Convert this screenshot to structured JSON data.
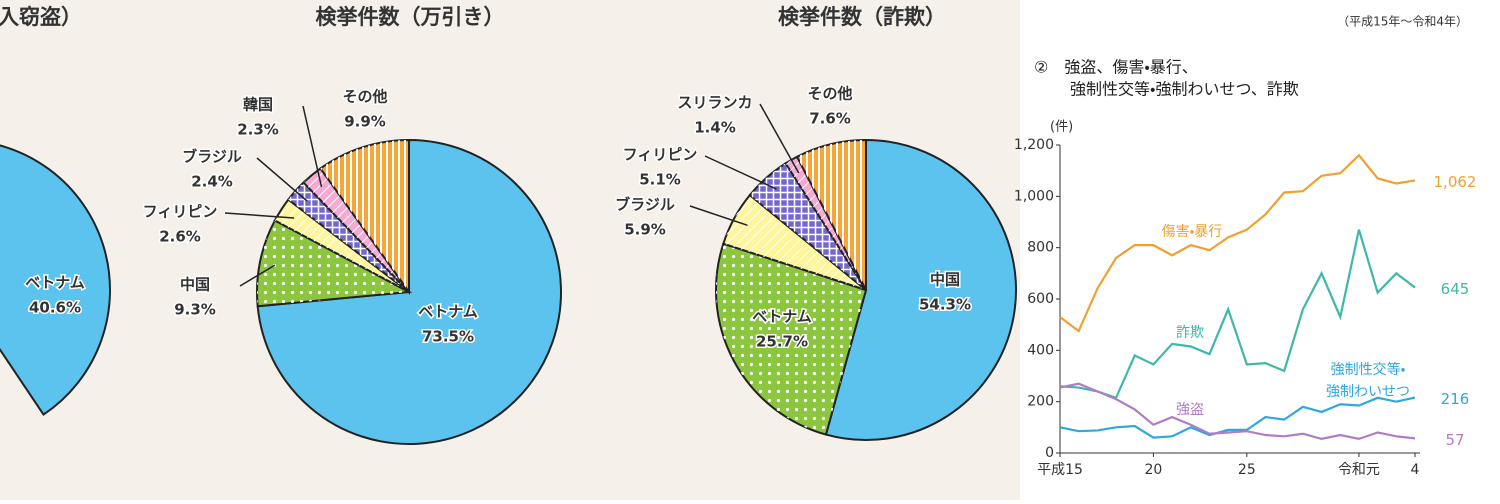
{
  "chart_data": [
    {
      "type": "pie",
      "title": "入窃盗）",
      "categories": [
        "ベトナム"
      ],
      "values": [
        40.6
      ],
      "value_labels": [
        "40.6%"
      ],
      "colors": [
        "#5bc3ee"
      ]
    },
    {
      "type": "pie",
      "title": "検挙件数（万引き）",
      "categories": [
        "ベトナム",
        "中国",
        "フィリピン",
        "ブラジル",
        "韓国",
        "その他"
      ],
      "values": [
        73.5,
        9.3,
        2.6,
        2.4,
        2.3,
        9.9
      ],
      "value_labels": [
        "73.5%",
        "9.3%",
        "2.6%",
        "2.4%",
        "2.3%",
        "9.9%"
      ],
      "colors": [
        "#5bc3ee",
        "#8cc63f",
        "#fff59a",
        "#7467cf",
        "#f6a9d2",
        "#f6a73a"
      ]
    },
    {
      "type": "pie",
      "title": "検挙件数（詐欺）",
      "categories": [
        "中国",
        "ベトナム",
        "ブラジル",
        "フィリピン",
        "スリランカ",
        "その他"
      ],
      "values": [
        54.3,
        25.7,
        5.9,
        5.1,
        1.4,
        7.6
      ],
      "value_labels": [
        "54.3%",
        "25.7%",
        "5.9%",
        "5.1%",
        "1.4%",
        "7.6%"
      ],
      "colors": [
        "#5bc3ee",
        "#8cc63f",
        "#fff59a",
        "#7467cf",
        "#f6a9d2",
        "#f6a73a"
      ]
    },
    {
      "type": "line",
      "title": [
        "②　強盗、傷害・暴行、",
        "強制性交等・強制わいせつ、詐欺"
      ],
      "subtitle": "（平成15年～令和4年）",
      "y_label": "(件)",
      "categories": [
        "平成15",
        null,
        null,
        null,
        null,
        "20",
        null,
        null,
        null,
        null,
        "25",
        null,
        null,
        null,
        null,
        null,
        "令和元",
        null,
        null,
        "4"
      ],
      "series": [
        {
          "name": "傷害・暴行",
          "color": "#f0a030",
          "values": [
            530,
            475,
            640,
            760,
            810,
            810,
            770,
            810,
            790,
            840,
            870,
            930,
            1015,
            1020,
            1080,
            1090,
            1160,
            1070,
            1050,
            1062
          ],
          "value_labels": [
            null,
            null,
            null,
            null,
            null,
            null,
            null,
            null,
            null,
            null,
            null,
            null,
            null,
            null,
            null,
            null,
            null,
            null,
            null,
            "1,062"
          ]
        },
        {
          "name": "詐欺",
          "color": "#3fb8a8",
          "values": [
            260,
            255,
            240,
            215,
            380,
            345,
            425,
            415,
            385,
            560,
            345,
            350,
            320,
            560,
            700,
            530,
            870,
            625,
            700,
            645
          ]
        },
        {
          "name": "強制性交等・強制わいせつ",
          "color": "#2fa8e0",
          "values": [
            100,
            85,
            88,
            100,
            105,
            60,
            65,
            100,
            70,
            90,
            90,
            140,
            130,
            180,
            160,
            190,
            185,
            215,
            200,
            216
          ]
        },
        {
          "name": "強盗",
          "color": "#b07cc6",
          "values": [
            255,
            270,
            240,
            210,
            170,
            110,
            140,
            110,
            75,
            80,
            85,
            70,
            65,
            75,
            55,
            70,
            55,
            80,
            65,
            57
          ]
        }
      ],
      "ylim": [
        0,
        1200
      ],
      "yticks": [
        0,
        200,
        400,
        600,
        800,
        {
          "value": 1000,
          "label": "1,000"
        },
        {
          "value": 1200,
          "label": "1,200"
        }
      ]
    }
  ]
}
